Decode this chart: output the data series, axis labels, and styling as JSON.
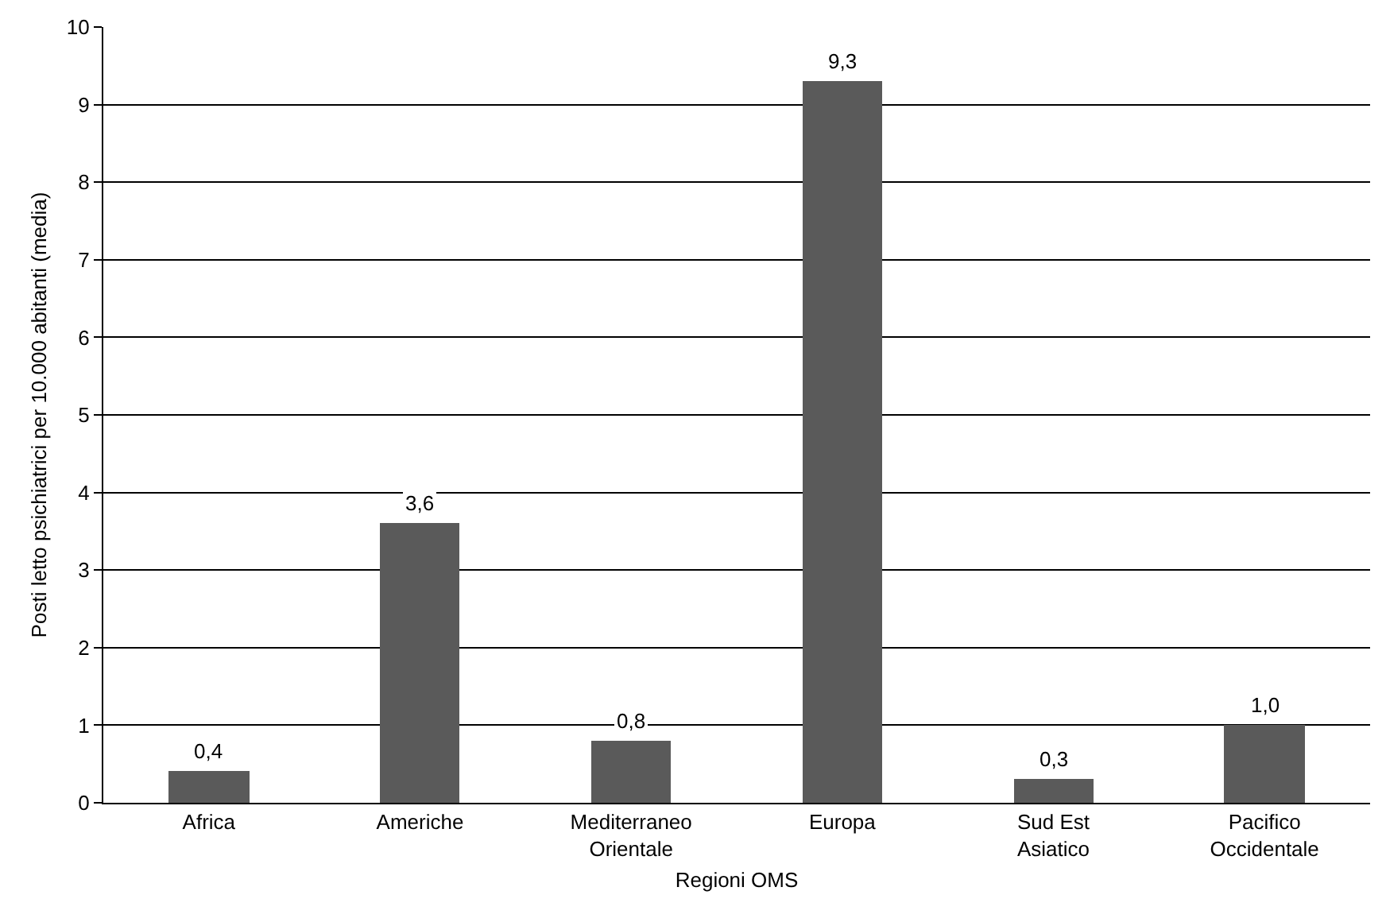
{
  "chart_data": {
    "type": "bar",
    "xlabel": "Regioni OMS",
    "ylabel": "Posti letto psichiatrici per 10.000 abitanti (media)",
    "categories": [
      "Africa",
      "Americhe",
      "Mediterraneo\nOrientale",
      "Europa",
      "Sud Est\nAsiatico",
      "Pacifico\nOccidentale"
    ],
    "values": [
      0.4,
      3.6,
      0.8,
      9.3,
      0.3,
      1.0
    ],
    "value_labels": [
      "0,4",
      "3,6",
      "0,8",
      "9,3",
      "0,3",
      "1,0"
    ],
    "color": "#5a5a5a",
    "ylim": [
      0,
      10
    ],
    "yticks": [
      0,
      1,
      2,
      3,
      4,
      5,
      6,
      7,
      8,
      9,
      10
    ],
    "grid": "y",
    "legend": false
  }
}
